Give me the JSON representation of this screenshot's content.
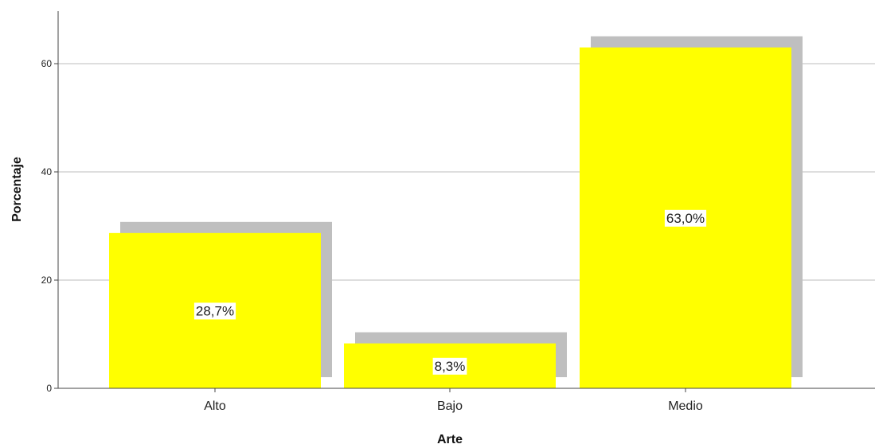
{
  "chart_data": {
    "type": "bar",
    "categories": [
      "Alto",
      "Bajo",
      "Medio"
    ],
    "values": [
      28.7,
      8.3,
      63.0
    ],
    "data_labels": [
      "28,7%",
      "8,3%",
      "63,0%"
    ],
    "xlabel": "Arte",
    "ylabel": "Porcentaje",
    "ylim": [
      0,
      70
    ],
    "yticks": [
      0,
      20,
      40,
      60
    ],
    "grid": true,
    "bar_color": "#ffff00",
    "shadow_color": "#bfbfbf",
    "gridline_color": "#bdbdbd"
  }
}
